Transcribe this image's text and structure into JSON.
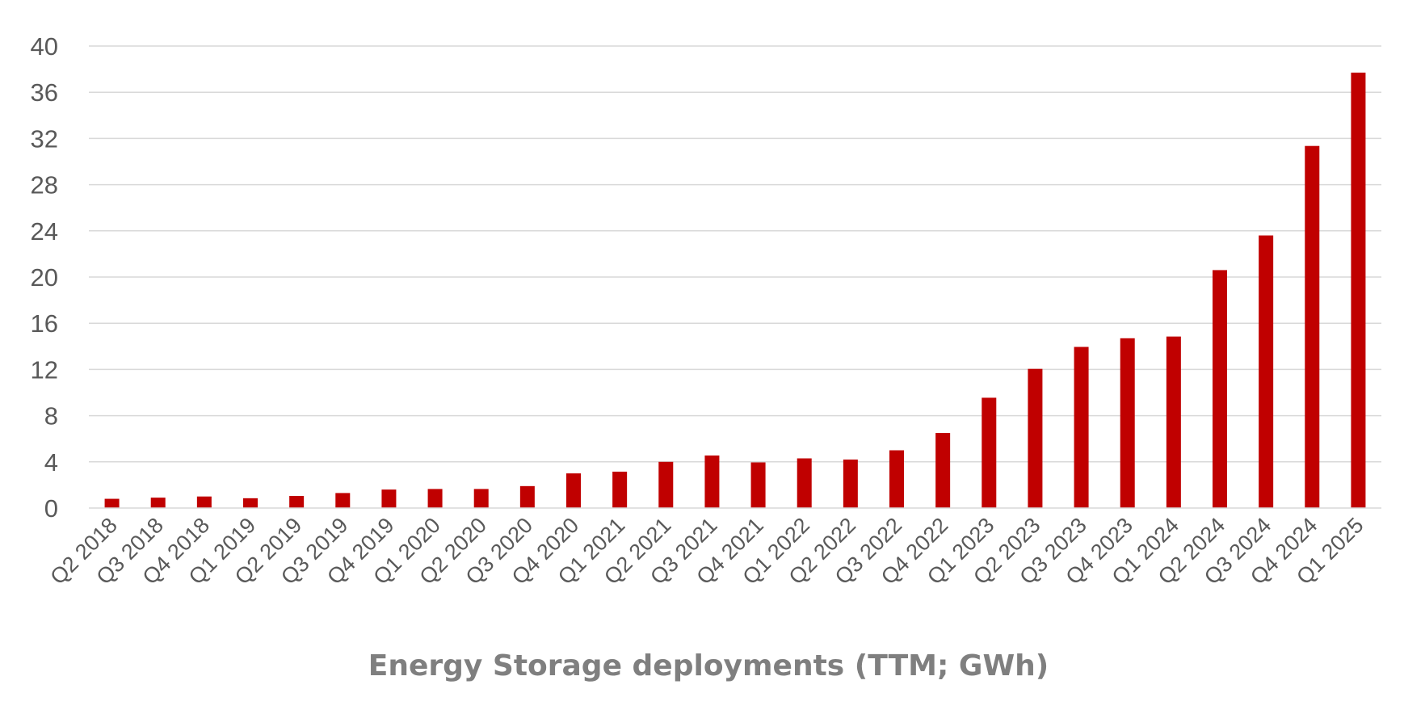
{
  "chart_data": {
    "type": "bar",
    "title": "",
    "xlabel": "Energy Storage deployments (TTM; GWh)",
    "ylabel": "",
    "ylim": [
      0,
      40
    ],
    "yticks": [
      0,
      4,
      8,
      12,
      16,
      20,
      24,
      28,
      32,
      36,
      40
    ],
    "grid": true,
    "legend": "none",
    "bar_color": "#c00000",
    "categories": [
      "Q2 2018",
      "Q3 2018",
      "Q4 2018",
      "Q1 2019",
      "Q2 2019",
      "Q3 2019",
      "Q4 2019",
      "Q1 2020",
      "Q2 2020",
      "Q3 2020",
      "Q4 2020",
      "Q1 2021",
      "Q2 2021",
      "Q3 2021",
      "Q4 2021",
      "Q1 2022",
      "Q2 2022",
      "Q3 2022",
      "Q4 2022",
      "Q1 2023",
      "Q2 2023",
      "Q3 2023",
      "Q4 2023",
      "Q1 2024",
      "Q2 2024",
      "Q3 2024",
      "Q4 2024",
      "Q1 2025"
    ],
    "values": [
      0.8,
      0.9,
      1.0,
      0.85,
      1.05,
      1.3,
      1.6,
      1.65,
      1.65,
      1.9,
      3.0,
      3.15,
      4.0,
      4.55,
      3.95,
      4.3,
      4.2,
      5.0,
      6.5,
      9.55,
      12.05,
      13.95,
      14.7,
      14.85,
      20.6,
      23.6,
      31.35,
      37.7
    ]
  }
}
